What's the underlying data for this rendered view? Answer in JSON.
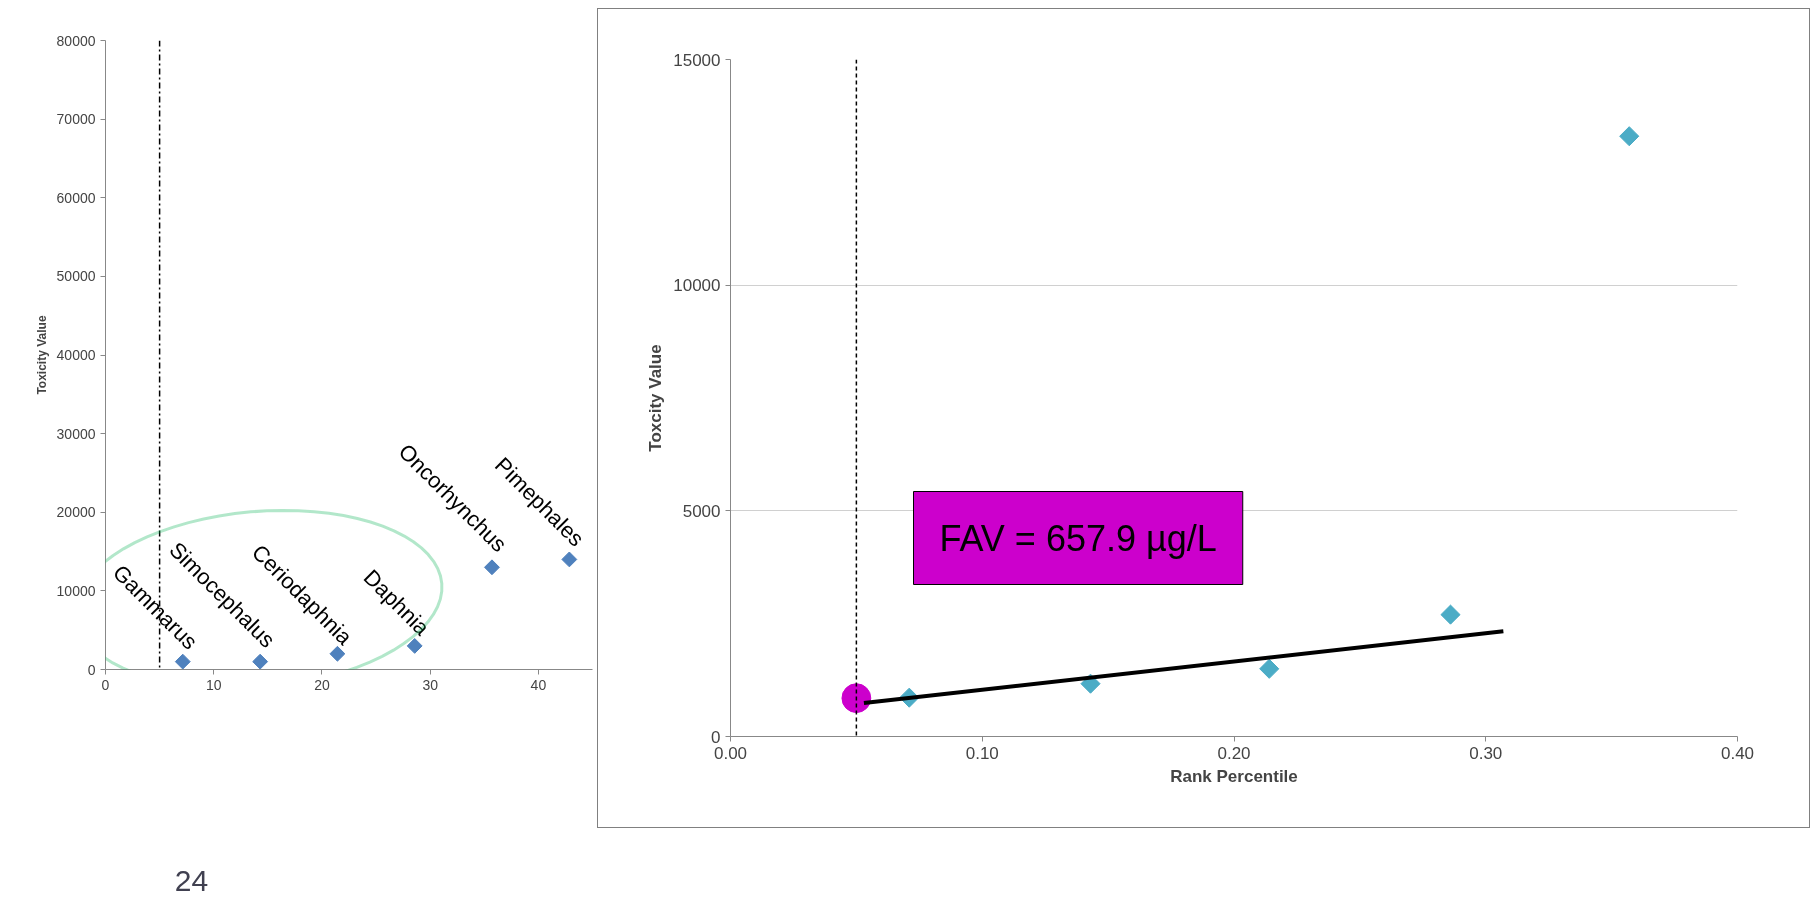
{
  "chart_data": [
    {
      "type": "scatter",
      "ylabel": "Toxicity Value",
      "x": [
        7.14,
        14.29,
        21.43,
        28.57,
        35.71,
        42.86
      ],
      "series": [
        {
          "color": "#4f81bd",
          "values": [
            1000,
            1000,
            2000,
            3000,
            13000,
            14000
          ]
        }
      ],
      "marker": "diamond",
      "xlim": [
        0,
        45
      ],
      "ylim": [
        0,
        80000
      ],
      "xticks": [
        0,
        10,
        20,
        30,
        40
      ],
      "yticks": [
        0,
        10000,
        20000,
        30000,
        40000,
        50000,
        60000,
        70000,
        80000
      ],
      "grid": false,
      "ref_lines": [
        {
          "axis": "x",
          "value": 5,
          "color": "#000000",
          "line_style": "dashdot"
        }
      ],
      "annotations": [
        {
          "text": "Gammarus",
          "x": 7.14,
          "y": 900
        },
        {
          "text": "Simocephalus",
          "x": 14.29,
          "y": 1150
        },
        {
          "text": "Ceriodaphnia",
          "x": 21.43,
          "y": 1500
        },
        {
          "text": "Daphnia",
          "x": 28.57,
          "y": 2700
        },
        {
          "text": "Oncorhynchus",
          "x": 35.71,
          "y": 13300
        },
        {
          "text": "Pimephales",
          "x": 42.86,
          "y": 14000
        },
        "24"
      ]
    },
    {
      "type": "scatter",
      "xlabel": "Rank Percentile",
      "ylabel": "Toxcity Value",
      "series": [
        {
          "type": "scatter",
          "marker": "diamond",
          "color": "#4bacc6",
          "x": [
            0.071,
            0.143,
            0.214,
            0.286,
            0.357
          ],
          "values": [
            860,
            1170,
            1500,
            2700,
            13300
          ]
        },
        {
          "type": "scatter",
          "marker": "circle",
          "color": "#cc00cc",
          "x": [
            0.05
          ],
          "values": [
            850
          ]
        },
        {
          "type": "line",
          "color": "#000000",
          "x": [
            0.053,
            0.307
          ],
          "values": [
            740,
            2330
          ]
        }
      ],
      "xlim": [
        0,
        0.4
      ],
      "ylim": [
        0,
        15000
      ],
      "xticks": [
        {
          "value": 0,
          "label": "0.00"
        },
        {
          "value": 0.1,
          "label": "0.10"
        },
        {
          "value": 0.2,
          "label": "0.20"
        },
        {
          "value": 0.3,
          "label": "0.30"
        },
        {
          "value": 0.4,
          "label": "0.40"
        }
      ],
      "yticks": [
        0,
        5000,
        10000,
        15000
      ],
      "grid": "y",
      "ref_lines": [
        {
          "axis": "x",
          "value": 0.05,
          "color": "#000000",
          "line_style": "dashed"
        }
      ],
      "annotations": [
        "FAV = 657.9 µg/L"
      ]
    }
  ]
}
